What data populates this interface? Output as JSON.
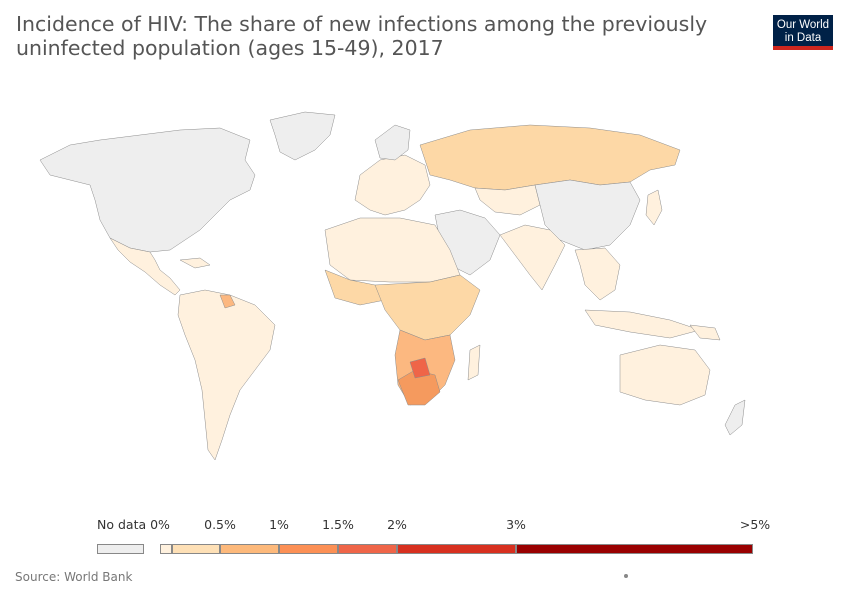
{
  "title": "Incidence of HIV: The share of new infections among the previously uninfected population (ages 15-49), 2017",
  "logo": {
    "line1": "Our World",
    "line2": "in Data",
    "bg": "#002147",
    "accent": "#ce261e"
  },
  "legend": {
    "no_data_label": "No data",
    "no_data_color": "#eeeeee",
    "bins": [
      {
        "from": "0%",
        "to": "0.5%",
        "color": "#fee0b6"
      },
      {
        "from": "0.5%",
        "to": "1%",
        "color": "#fdb97b"
      },
      {
        "from": "1%",
        "to": "1.5%",
        "color": "#fc9055"
      },
      {
        "from": "1.5%",
        "to": "2%",
        "color": "#ef6548"
      },
      {
        "from": "2%",
        "to": "3%",
        "color": "#d7301f"
      },
      {
        "from": "3%",
        "to": ">5%",
        "color": "#990000"
      }
    ],
    "tick_labels": [
      "0%",
      "0.5%",
      "1%",
      "1.5%",
      "2%",
      "3%",
      ">5%"
    ]
  },
  "source": "Source: World Bank",
  "colors": {
    "no_data": "#eeeeee",
    "very_low": "#fff1de",
    "low": "#fdd8a6",
    "mid": "#fcb880",
    "high": "#f59a5e",
    "border": "#8c8c8c"
  }
}
